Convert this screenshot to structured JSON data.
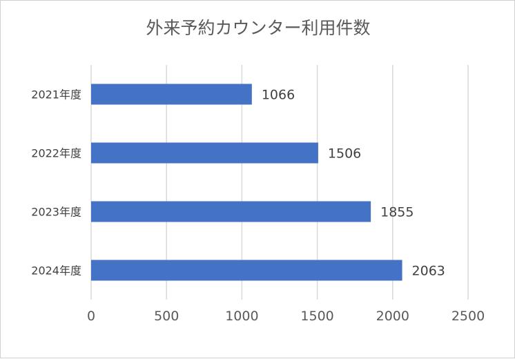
{
  "chart_data": {
    "type": "bar",
    "orientation": "horizontal",
    "title": "外来予約カウンター利用件数",
    "categories": [
      "2021年度",
      "2022年度",
      "2023年度",
      "2024年度"
    ],
    "values": [
      1066,
      1506,
      1855,
      2063
    ],
    "data_labels": [
      "1066",
      "1506",
      "1855",
      "2063"
    ],
    "xlim": [
      0,
      2500
    ],
    "x_ticks": [
      "0",
      "500",
      "1000",
      "1500",
      "2000",
      "2500"
    ],
    "bar_color": "#4472C4",
    "grid": true,
    "legend": "none"
  }
}
